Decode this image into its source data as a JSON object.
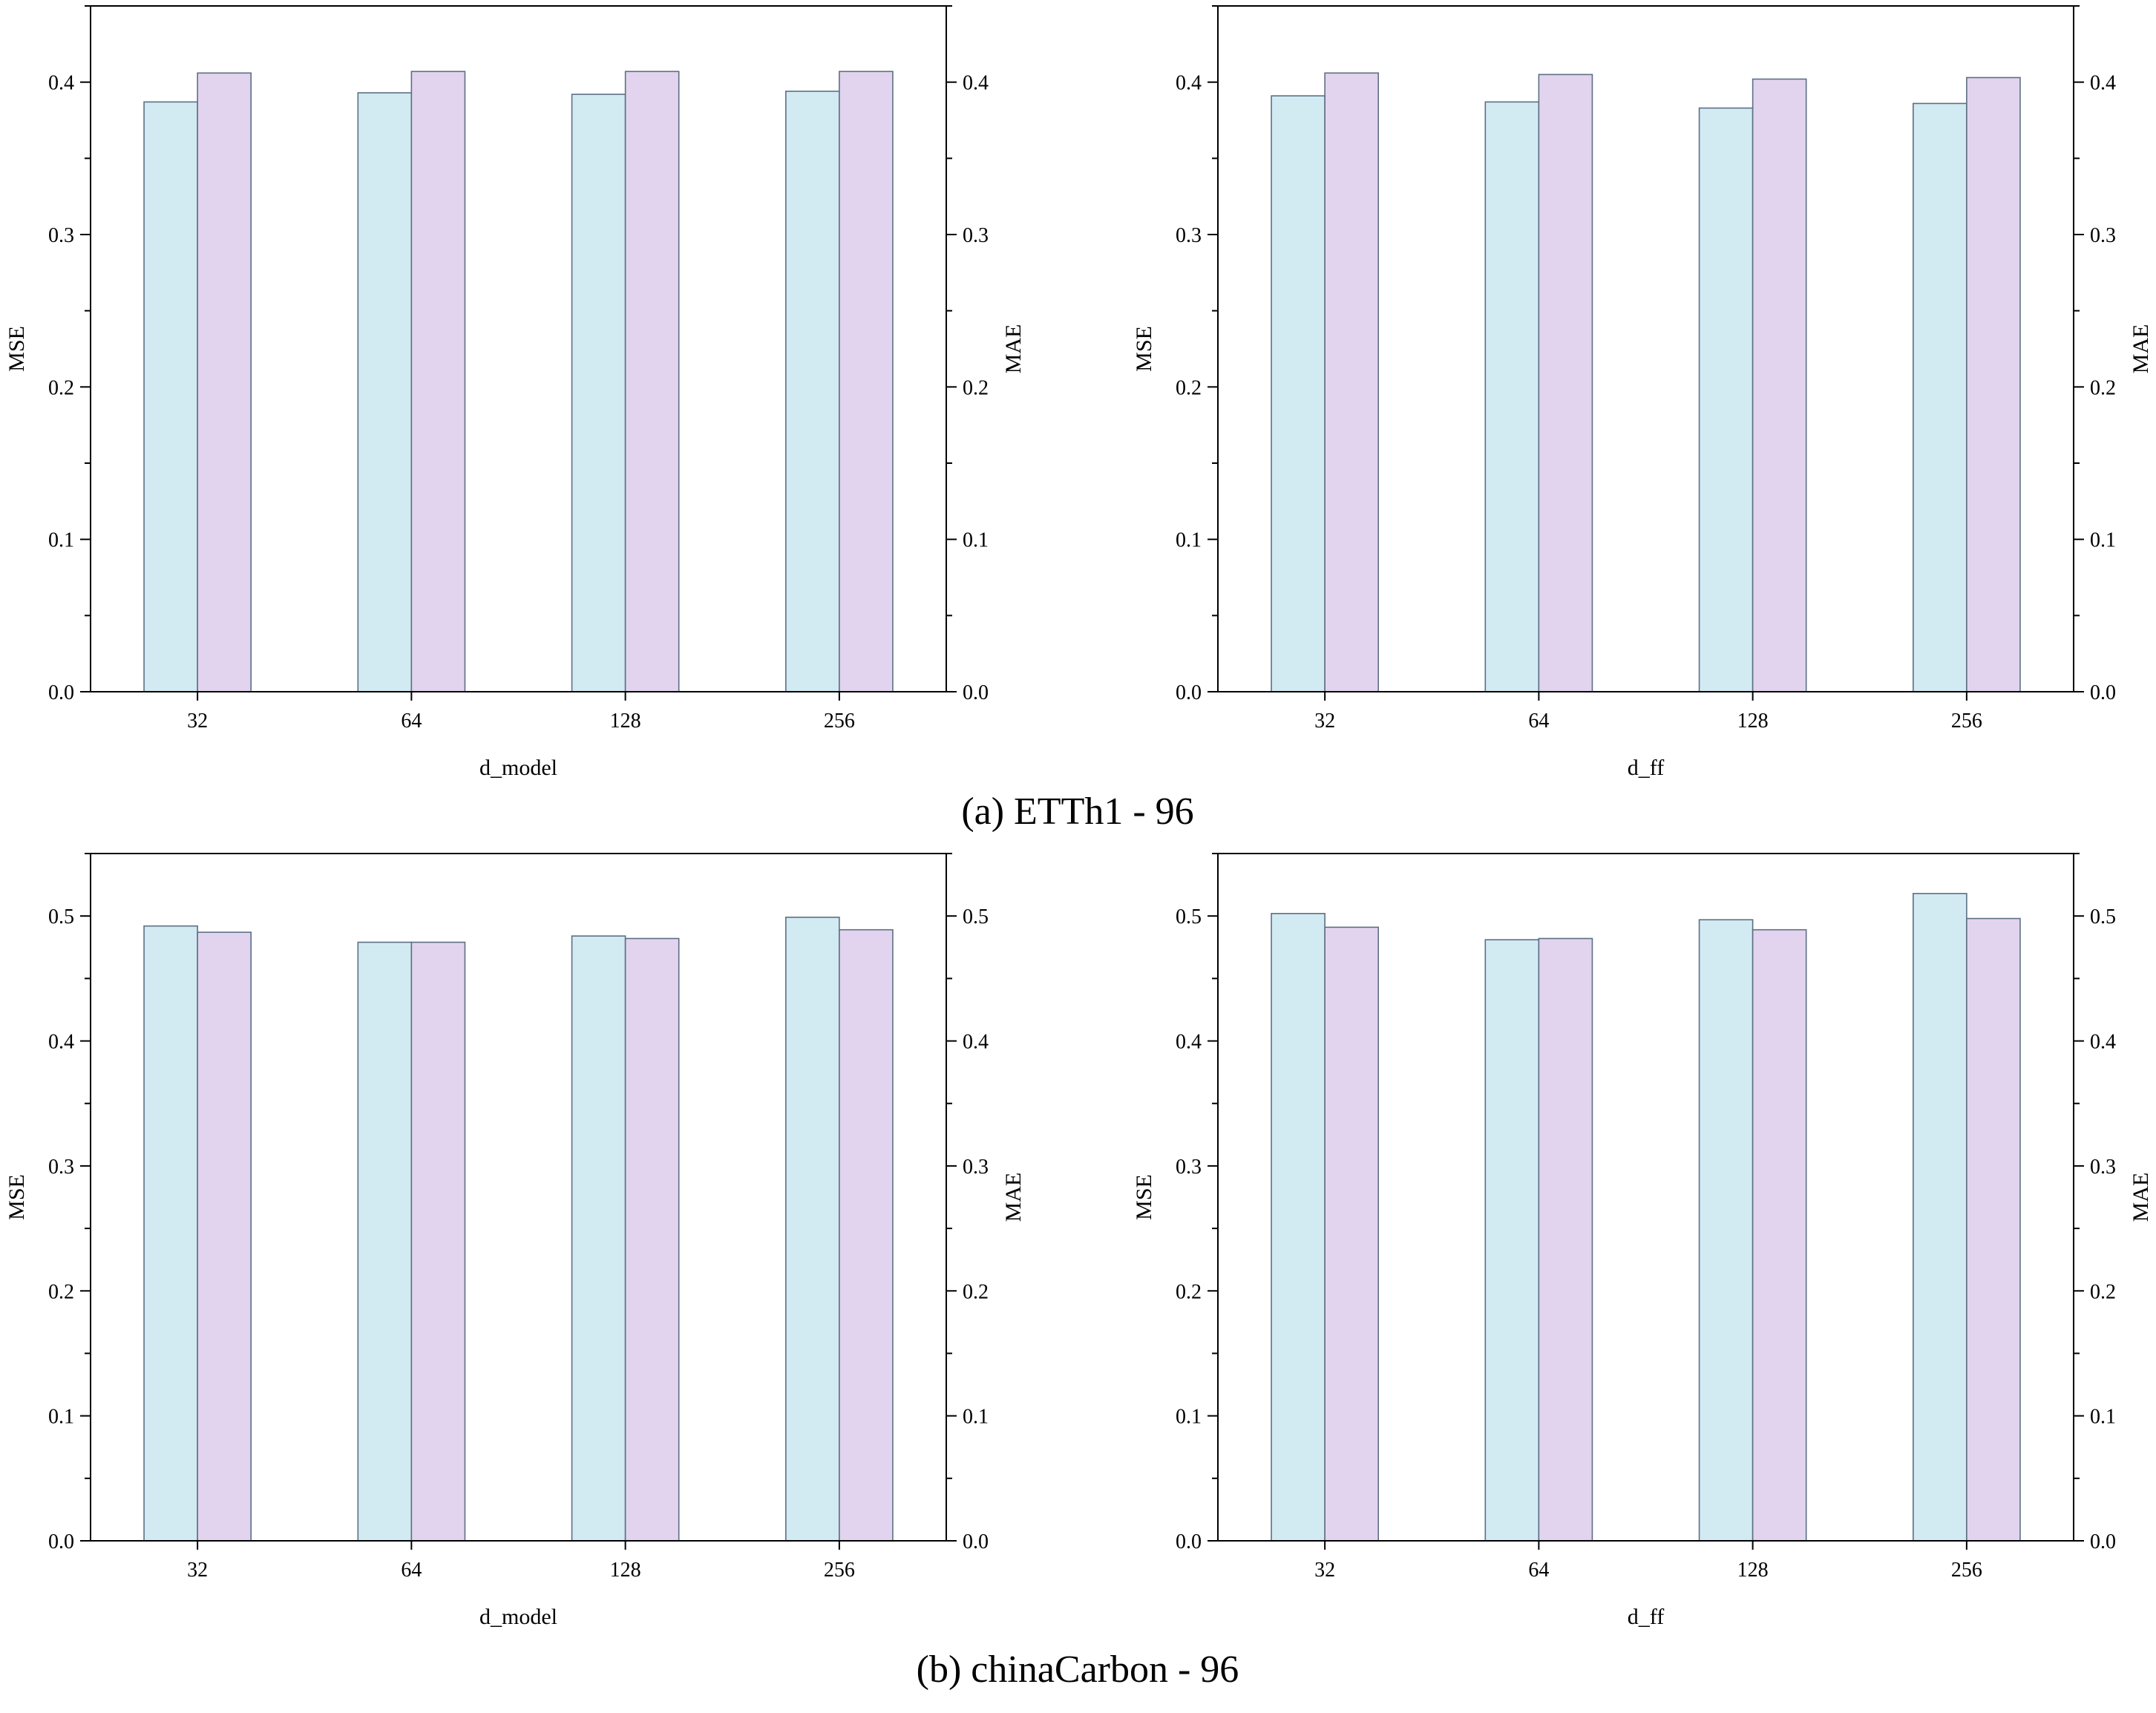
{
  "figure": {
    "captions": [
      "(a) ETTh1 - 96",
      "(b) chinaCarbon - 96"
    ],
    "colors": {
      "mse": "#d2eaf1",
      "mae": "#e2d4ee",
      "edge": "#5d6f85",
      "axis": "#000000"
    }
  },
  "chart_data": [
    {
      "type": "bar",
      "group": "(a) ETTh1 - 96",
      "categories": [
        "32",
        "64",
        "128",
        "256"
      ],
      "series": [
        {
          "name": "MSE",
          "axis": "left",
          "values": [
            0.387,
            0.393,
            0.392,
            0.394
          ]
        },
        {
          "name": "MAE",
          "axis": "right",
          "values": [
            0.406,
            0.407,
            0.407,
            0.407
          ]
        }
      ],
      "xlabel": "d_model",
      "ylabel_left": "MSE",
      "ylabel_right": "MAE",
      "ylim": [
        0,
        0.45
      ],
      "yticks": [
        "0.0",
        "0.1",
        "0.2",
        "0.3",
        "0.4"
      ]
    },
    {
      "type": "bar",
      "group": "(a) ETTh1 - 96",
      "categories": [
        "32",
        "64",
        "128",
        "256"
      ],
      "series": [
        {
          "name": "MSE",
          "axis": "left",
          "values": [
            0.391,
            0.387,
            0.383,
            0.386
          ]
        },
        {
          "name": "MAE",
          "axis": "right",
          "values": [
            0.406,
            0.405,
            0.402,
            0.403
          ]
        }
      ],
      "xlabel": "d_ff",
      "ylabel_left": "MSE",
      "ylabel_right": "MAE",
      "ylim": [
        0,
        0.45
      ],
      "yticks": [
        "0.0",
        "0.1",
        "0.2",
        "0.3",
        "0.4"
      ]
    },
    {
      "type": "bar",
      "group": "(b) chinaCarbon - 96",
      "categories": [
        "32",
        "64",
        "128",
        "256"
      ],
      "series": [
        {
          "name": "MSE",
          "axis": "left",
          "values": [
            0.492,
            0.479,
            0.484,
            0.499
          ]
        },
        {
          "name": "MAE",
          "axis": "right",
          "values": [
            0.487,
            0.479,
            0.482,
            0.489
          ]
        }
      ],
      "xlabel": "d_model",
      "ylabel_left": "MSE",
      "ylabel_right": "MAE",
      "ylim": [
        0,
        0.55
      ],
      "yticks": [
        "0.0",
        "0.1",
        "0.2",
        "0.3",
        "0.4",
        "0.5"
      ]
    },
    {
      "type": "bar",
      "group": "(b) chinaCarbon - 96",
      "categories": [
        "32",
        "64",
        "128",
        "256"
      ],
      "series": [
        {
          "name": "MSE",
          "axis": "left",
          "values": [
            0.502,
            0.481,
            0.497,
            0.518
          ]
        },
        {
          "name": "MAE",
          "axis": "right",
          "values": [
            0.491,
            0.482,
            0.489,
            0.498
          ]
        }
      ],
      "xlabel": "d_ff",
      "ylabel_left": "MSE",
      "ylabel_right": "MAE",
      "ylim": [
        0,
        0.55
      ],
      "yticks": [
        "0.0",
        "0.1",
        "0.2",
        "0.3",
        "0.4",
        "0.5"
      ]
    }
  ]
}
